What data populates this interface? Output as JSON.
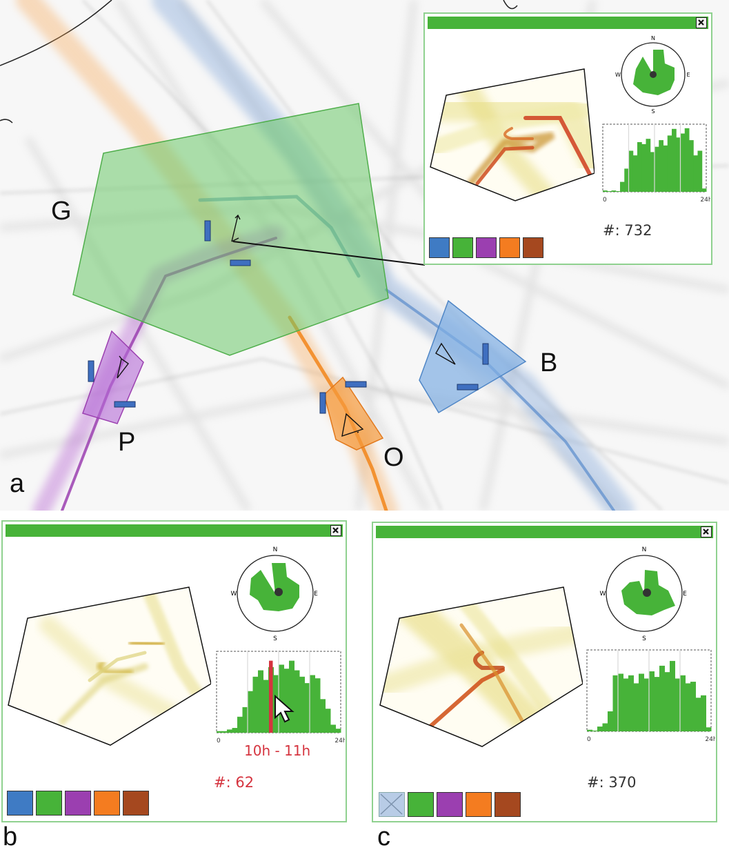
{
  "map": {
    "regions": [
      {
        "label": "G",
        "color": "#6cc96a"
      },
      {
        "label": "P",
        "color": "#a04ec4"
      },
      {
        "label": "O",
        "color": "#f28a22"
      },
      {
        "label": "B",
        "color": "#5a93d6"
      }
    ],
    "panel_label": "a"
  },
  "panels": [
    {
      "id": "a",
      "count_text": "#: 732",
      "compass": {
        "n": "N",
        "s": "S",
        "e": "E",
        "w": "W"
      },
      "axis": {
        "start": "0",
        "end": "24h"
      }
    },
    {
      "id": "b",
      "count_text": "#: 62",
      "selected_hours": "10h - 11h",
      "compass": {
        "n": "N",
        "s": "S",
        "e": "E",
        "w": "W"
      },
      "axis": {
        "start": "0",
        "end": "24h"
      },
      "label": "b"
    },
    {
      "id": "c",
      "count_text": "#: 370",
      "compass": {
        "n": "N",
        "s": "S",
        "e": "E",
        "w": "W"
      },
      "axis": {
        "start": "0",
        "end": "24h"
      },
      "label": "c"
    }
  ],
  "swatch_colors": [
    "#3f7bc4",
    "#47b339",
    "#9b3fb0",
    "#f47c20",
    "#a5481f"
  ],
  "histograms": {
    "a": [
      0.02,
      0.01,
      0.02,
      0.01,
      0.15,
      0.35,
      0.62,
      0.55,
      0.75,
      0.72,
      0.8,
      0.6,
      0.68,
      0.78,
      0.7,
      0.85,
      0.95,
      0.82,
      0.88,
      0.96,
      0.78,
      0.55,
      0.62,
      0.05
    ],
    "b": [
      0.02,
      0.02,
      0.04,
      0.06,
      0.2,
      0.32,
      0.52,
      0.7,
      0.78,
      0.66,
      0.82,
      0.72,
      0.85,
      0.8,
      0.9,
      0.78,
      0.7,
      0.62,
      0.72,
      0.68,
      0.42,
      0.3,
      0.1,
      0.05
    ],
    "c": [
      0.02,
      0.01,
      0.06,
      0.1,
      0.25,
      0.7,
      0.72,
      0.66,
      0.7,
      0.6,
      0.72,
      0.66,
      0.75,
      0.68,
      0.82,
      0.74,
      0.88,
      0.66,
      0.7,
      0.6,
      0.62,
      0.42,
      0.45,
      0.05
    ]
  }
}
